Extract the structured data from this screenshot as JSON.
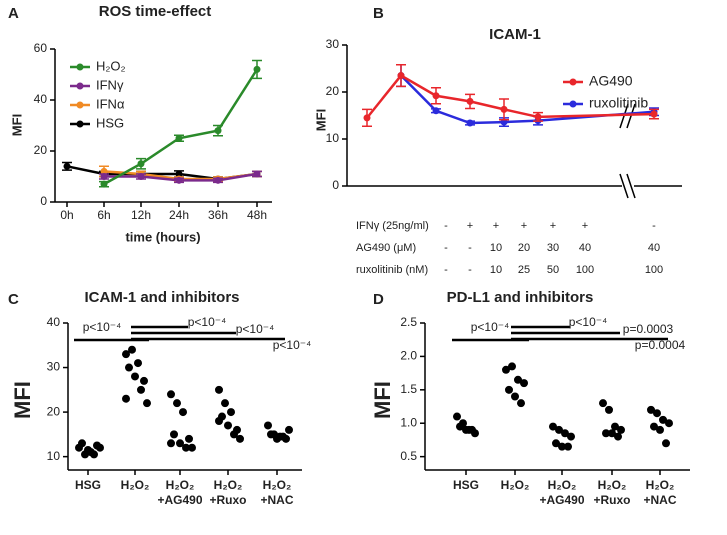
{
  "chart_data": [
    {
      "type": "line",
      "panel": "A",
      "title": "ROS time-effect",
      "xlabel": "time (hours)",
      "ylabel": "MFI",
      "categories": [
        "0h",
        "6h",
        "12h",
        "24h",
        "36h",
        "48h"
      ],
      "ylim": [
        0,
        60
      ],
      "yticks": [
        0,
        20,
        40,
        60
      ],
      "legend": "upper left",
      "series": [
        {
          "name": "H₂O₂",
          "color": "#2a8a2a",
          "values": [
            null,
            7,
            15,
            25,
            28,
            52
          ],
          "errors": [
            null,
            1,
            2,
            1.2,
            2,
            3.5
          ]
        },
        {
          "name": "IFNγ",
          "color": "#7b2a8c",
          "values": [
            null,
            10,
            10,
            8.5,
            8.5,
            11
          ],
          "errors": [
            null,
            1,
            1,
            0.8,
            0.8,
            1
          ]
        },
        {
          "name": "IFNα",
          "color": "#f08a24",
          "values": [
            null,
            12,
            11,
            9,
            9,
            11
          ],
          "errors": [
            null,
            2,
            1,
            0.8,
            0.8,
            1
          ]
        },
        {
          "name": "HSG",
          "color": "#000000",
          "values": [
            14,
            11,
            11,
            11,
            9,
            11
          ],
          "errors": [
            1.5,
            1,
            1,
            1.2,
            0.8,
            1
          ]
        }
      ]
    },
    {
      "type": "line",
      "panel": "B",
      "title": "ICAM-1",
      "ylabel": "MFI",
      "ylim": [
        0,
        30
      ],
      "yticks": [
        0,
        10,
        20,
        30
      ],
      "legend": "upper right",
      "axis_break": true,
      "table": {
        "rows": [
          {
            "label": "IFNγ (25ng/ml)",
            "cells": [
              "-",
              "+",
              "+",
              "+",
              "+",
              "+",
              "-"
            ]
          },
          {
            "label": "AG490 (μM)",
            "cells": [
              "-",
              "-",
              "10",
              "20",
              "30",
              "40",
              "40"
            ]
          },
          {
            "label": "ruxolitinib (nM)",
            "cells": [
              "-",
              "-",
              "10",
              "25",
              "50",
              "100",
              "100"
            ]
          }
        ]
      },
      "series": [
        {
          "name": "AG490",
          "color": "#e8262b",
          "values": [
            14.5,
            23.5,
            19.2,
            18,
            16.3,
            14.7,
            15.3
          ],
          "errors": [
            1.8,
            2.3,
            1.7,
            1.5,
            2.2,
            0.9,
            1
          ]
        },
        {
          "name": "ruxolitinib",
          "color": "#2b2bdc",
          "values": [
            null,
            23.5,
            16,
            13.4,
            13.6,
            13.9,
            15.8
          ],
          "errors": [
            null,
            2.3,
            0.4,
            0.4,
            0.9,
            0.9,
            0.8
          ]
        }
      ]
    },
    {
      "type": "dot",
      "panel": "C",
      "title": "ICAM-1 and inhibitors",
      "ylabel": "MFI",
      "categories": [
        [
          "HSG"
        ],
        [
          "H₂O₂"
        ],
        [
          "H₂O₂",
          "+AG490"
        ],
        [
          "H₂O₂",
          "+Ruxo"
        ],
        [
          "H₂O₂",
          "+NAC"
        ]
      ],
      "ylim": [
        7,
        40
      ],
      "yticks": [
        10,
        20,
        30,
        40
      ],
      "color": "#000000",
      "values": [
        [
          12,
          10.5,
          11,
          12.5,
          13,
          11.5,
          10.5,
          12
        ],
        [
          33,
          34,
          31,
          27,
          30,
          28,
          25,
          22,
          23
        ],
        [
          24,
          22,
          20,
          14,
          15,
          13,
          12,
          12,
          13
        ],
        [
          25,
          22,
          20,
          16,
          19,
          17,
          15,
          14,
          18
        ],
        [
          17,
          15,
          14.5,
          14,
          15,
          14,
          14.5,
          16
        ]
      ],
      "comparisons": [
        {
          "from": 0,
          "to": 1,
          "label": "p<10⁻⁴"
        },
        {
          "from": 1,
          "to": 2,
          "label": "p<10⁻⁴"
        },
        {
          "from": 1,
          "to": 3,
          "label": "p<10⁻⁴"
        },
        {
          "from": 1,
          "to": 4,
          "label": "p<10⁻⁴"
        }
      ]
    },
    {
      "type": "dot",
      "panel": "D",
      "title": "PD-L1 and inhibitors",
      "ylabel": "MFI",
      "categories": [
        [
          "HSG"
        ],
        [
          "H₂O₂"
        ],
        [
          "H₂O₂",
          "+AG490"
        ],
        [
          "H₂O₂",
          "+Ruxo"
        ],
        [
          "H₂O₂",
          "+NAC"
        ]
      ],
      "ylim": [
        0.3,
        2.5
      ],
      "yticks": [
        0.5,
        {
          "value": 1,
          "label": "1.0"
        },
        1.5,
        {
          "value": 2,
          "label": "2.0"
        },
        2.5
      ],
      "color": "#000000",
      "values": [
        [
          1.1,
          1.0,
          0.9,
          0.85,
          0.95,
          0.9,
          0.9
        ],
        [
          1.8,
          1.85,
          1.65,
          1.6,
          1.5,
          1.4,
          1.3
        ],
        [
          0.95,
          0.9,
          0.85,
          0.8,
          0.7,
          0.65,
          0.65
        ],
        [
          1.3,
          1.2,
          0.95,
          0.9,
          0.85,
          0.85,
          0.8
        ],
        [
          1.2,
          1.15,
          1.05,
          1.0,
          0.95,
          0.9,
          0.7
        ]
      ],
      "comparisons": [
        {
          "from": 0,
          "to": 1,
          "label": "p<10⁻⁴"
        },
        {
          "from": 1,
          "to": 2,
          "label": "p<10⁻⁴"
        },
        {
          "from": 1,
          "to": 3,
          "label": "p=0.0003"
        },
        {
          "from": 1,
          "to": 4,
          "label": "p=0.0004"
        }
      ]
    }
  ]
}
